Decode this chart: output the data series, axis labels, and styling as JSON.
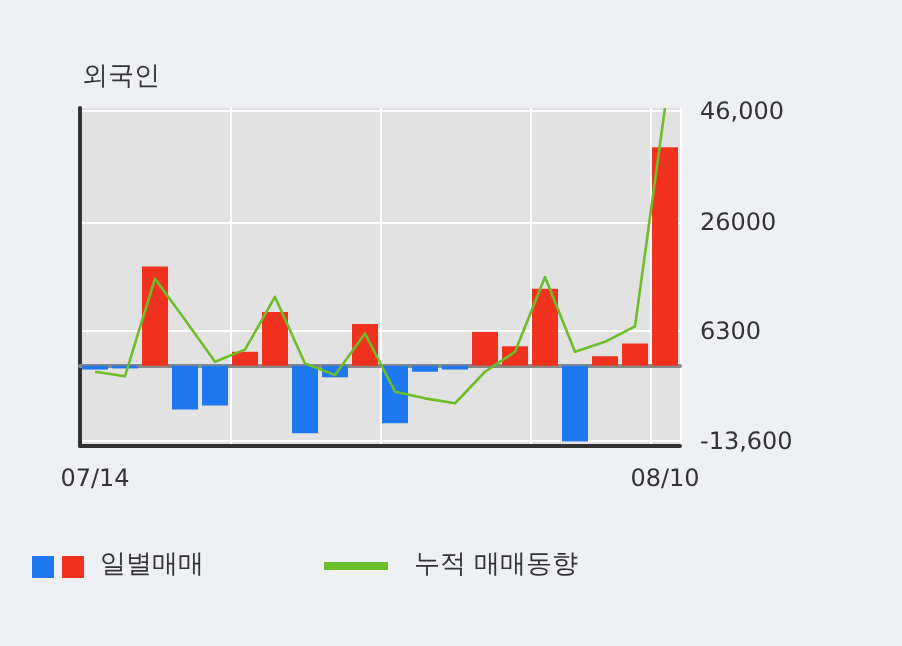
{
  "chart_data": {
    "type": "bar",
    "title": "외국인",
    "categories": [
      "07/14",
      null,
      null,
      null,
      null,
      null,
      null,
      null,
      null,
      null,
      null,
      null,
      null,
      null,
      null,
      null,
      null,
      null,
      null,
      "08/10"
    ],
    "series": [
      {
        "name": "일별매매",
        "colors": [
          "#1e78f0",
          "#1e78f0",
          "#f0321e",
          "#1e78f0",
          "#1e78f0",
          "#f0321e",
          "#f0321e",
          "#1e78f0",
          "#1e78f0",
          "#f0321e",
          "#1e78f0",
          "#1e78f0",
          "#1e78f0",
          "#f0321e",
          "#f0321e",
          "#f0321e",
          "#1e78f0",
          "#f0321e",
          "#f0321e",
          "#f0321e"
        ],
        "values": [
          -700,
          -500,
          17900,
          -7900,
          -7200,
          2500,
          9700,
          -12200,
          -2100,
          7500,
          -10400,
          -1100,
          -700,
          6100,
          3500,
          13900,
          -13700,
          1700,
          4000,
          39400
        ]
      },
      {
        "type": "line",
        "name": "누적 매매동향",
        "color": "#6cbf2a",
        "values": [
          -1100,
          -1900,
          15700,
          8300,
          700,
          2900,
          12400,
          400,
          -1700,
          5800,
          -4700,
          -5900,
          -6800,
          -1100,
          2500,
          16000,
          2500,
          4300,
          7100,
          46500
        ]
      }
    ],
    "ylim": [
      -14500,
      46500
    ],
    "yticks": [
      {
        "value": 46000,
        "label": "46,000"
      },
      26000,
      6300,
      {
        "value": -13600,
        "label": "-13,600"
      }
    ],
    "grid": true,
    "legend": "bottom",
    "marker": "none"
  }
}
